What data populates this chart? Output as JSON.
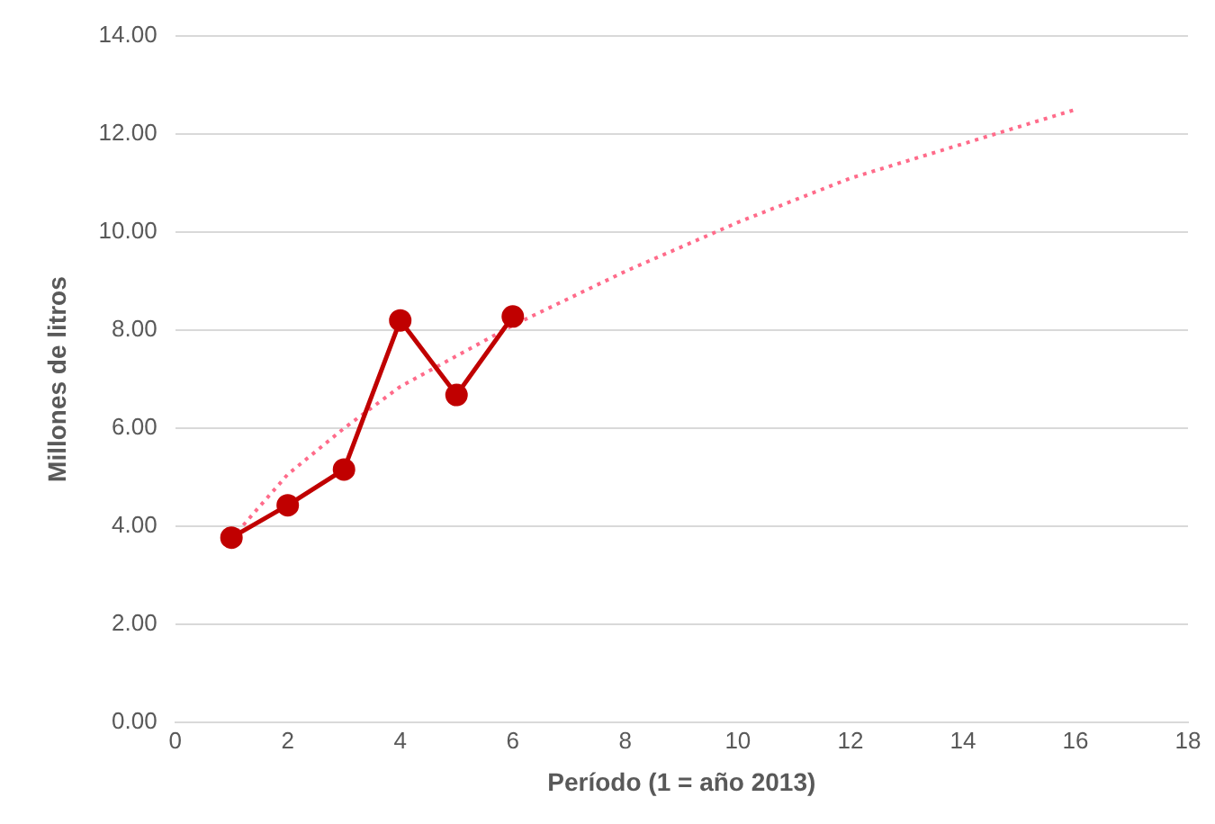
{
  "chart_data": {
    "type": "line",
    "xlabel": "Período (1 = año 2013)",
    "ylabel": "Millones de litros",
    "xlim": [
      0,
      18
    ],
    "xticks": [
      0,
      2,
      4,
      6,
      8,
      10,
      12,
      14,
      16,
      18
    ],
    "ylim": [
      0,
      14
    ],
    "yticks": [
      {
        "value": 0,
        "label": "0.00"
      },
      {
        "value": 2,
        "label": "2.00"
      },
      {
        "value": 4,
        "label": "4.00"
      },
      {
        "value": 6,
        "label": "6.00"
      },
      {
        "value": 8,
        "label": "8.00"
      },
      {
        "value": 10,
        "label": "10.00"
      },
      {
        "value": 12,
        "label": "12.00"
      },
      {
        "value": 14,
        "label": "14.00"
      }
    ],
    "grid": "y",
    "legend": false,
    "series": [
      {
        "color": "#c00000",
        "x": [
          1,
          2,
          3,
          4,
          5,
          6
        ],
        "values": [
          3.77,
          4.43,
          5.16,
          8.2,
          6.68,
          8.28
        ],
        "marker": "circle",
        "line_style": "solid"
      },
      {
        "color": "#ff6b8a",
        "x": [
          1,
          2,
          3,
          4,
          6,
          8,
          10,
          12,
          14,
          16
        ],
        "values": [
          3.75,
          5.06,
          6.0,
          6.85,
          8.1,
          9.2,
          10.2,
          11.1,
          11.8,
          12.5
        ],
        "marker": "none",
        "line_style": "dotted"
      }
    ]
  }
}
